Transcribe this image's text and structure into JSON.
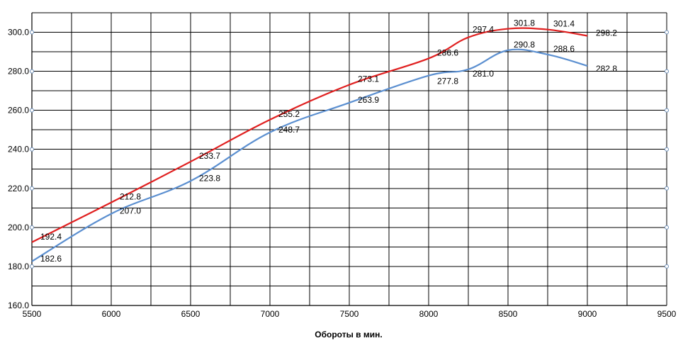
{
  "chart_data": {
    "type": "line",
    "xlabel": "Обороты  в мин.",
    "ylabel": "",
    "title": "",
    "xlim": [
      5500,
      9500
    ],
    "ylim": [
      160,
      310
    ],
    "x_ticks": [
      5500,
      6000,
      6500,
      7000,
      7500,
      8000,
      8500,
      9000,
      9500
    ],
    "x_tick_labels": [
      "5500",
      "6000",
      "6500",
      "7000",
      "7500",
      "8000",
      "8500",
      "9000",
      "9500"
    ],
    "y_ticks": [
      160,
      180,
      200,
      220,
      240,
      260,
      280,
      300
    ],
    "y_tick_labels": [
      "160.0",
      "180.0",
      "200.0",
      "220.0",
      "240.0",
      "260.0",
      "280.0",
      "300.0"
    ],
    "grid": true,
    "legend": "none",
    "series": [
      {
        "color": "#e02020",
        "x": [
          5500,
          6000,
          6500,
          7000,
          7500,
          8000,
          8250,
          8500,
          8750,
          9000
        ],
        "values": [
          192.4,
          212.8,
          233.7,
          255.2,
          273.1,
          286.6,
          297.4,
          301.8,
          301.4,
          298.2
        ],
        "labels": [
          "192.4",
          "212.8",
          "233.7",
          "255.2",
          "273.1",
          "286.6",
          "297.4",
          "301.8",
          "301.4",
          "298.2"
        ]
      },
      {
        "color": "#5b8fd0",
        "x": [
          5500,
          6000,
          6500,
          7000,
          7500,
          8000,
          8250,
          8500,
          8750,
          9000
        ],
        "values": [
          182.6,
          207.0,
          223.8,
          248.7,
          263.9,
          277.8,
          281.0,
          290.8,
          288.6,
          282.8
        ],
        "labels": [
          "182.6",
          "207.0",
          "223.8",
          "248.7",
          "263.9",
          "277.8",
          "281.0",
          "290.8",
          "288.6",
          "282.8"
        ]
      }
    ]
  }
}
